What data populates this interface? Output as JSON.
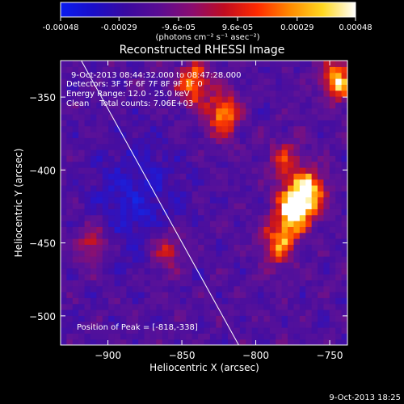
{
  "colorbar": {
    "tick_labels": [
      "-0.00048",
      "-0.00029",
      "-9.6e-05",
      "9.6e-05",
      "0.00029",
      "0.00048"
    ],
    "tick_values": [
      -0.00048,
      -0.00029,
      -9.6e-05,
      9.6e-05,
      0.00029,
      0.00048
    ],
    "range": [
      -0.00048,
      0.00048
    ],
    "unit_label": "(photons cm⁻² s⁻¹ asec⁻²)",
    "colors": [
      "#0a1cf0",
      "#1a0ec8",
      "#3a0aa0",
      "#5a0c92",
      "#8a0c70",
      "#c00c20",
      "#ff2a00",
      "#ff8a00",
      "#ffd820",
      "#ffffff"
    ]
  },
  "chart_data": {
    "type": "heatmap",
    "title": "Reconstructed RHESSI Image",
    "xlabel": "Heliocentric X (arcsec)",
    "ylabel": "Heliocentric Y (arcsec)",
    "xlim": [
      -932,
      -738
    ],
    "ylim": [
      -520,
      -325
    ],
    "xticks": [
      -900,
      -850,
      -800,
      -750
    ],
    "yticks": [
      -350,
      -400,
      -450,
      -500
    ],
    "limb_line": [
      [
        -918,
        -325
      ],
      [
        -811,
        -521
      ]
    ],
    "peak": {
      "x": -818,
      "y": -338
    },
    "bright_sources": [
      {
        "x": -775,
        "y": -428,
        "intensity": 1.0
      },
      {
        "x": -763,
        "y": -415,
        "intensity": 0.9
      },
      {
        "x": -745,
        "y": -338,
        "intensity": 0.85
      },
      {
        "x": -822,
        "y": -362,
        "intensity": 0.8
      },
      {
        "x": -842,
        "y": -340,
        "intensity": 0.75
      },
      {
        "x": -785,
        "y": -450,
        "intensity": 0.7
      },
      {
        "x": -860,
        "y": -455,
        "intensity": 0.55
      },
      {
        "x": -910,
        "y": -450,
        "intensity": 0.5
      },
      {
        "x": -780,
        "y": -395,
        "intensity": 0.55
      }
    ],
    "annotations": [
      "9-Oct-2013 08:44:32.000 to 08:47:28.000",
      "Detectors: 3F 5F 6F 7F 8F 9F 1F 0",
      "Energy Range: 12.0 - 25.0 keV",
      "Clean    Total counts: 7.06E+03",
      "Position of Peak = [-818,-338]"
    ]
  },
  "footer_timestamp": "9-Oct-2013 18:25"
}
